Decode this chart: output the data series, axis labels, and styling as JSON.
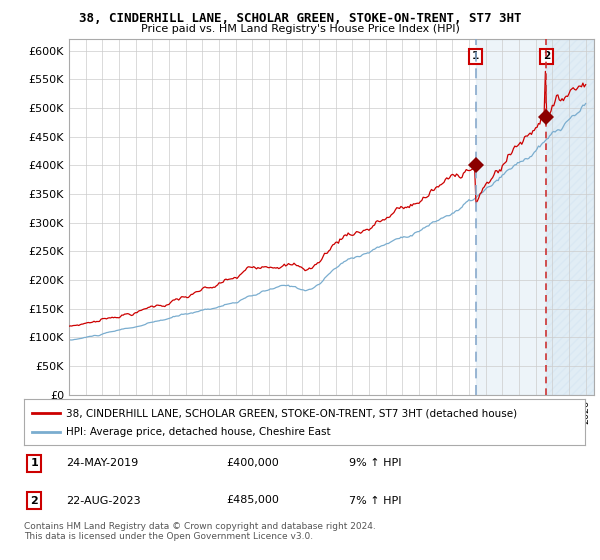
{
  "title1": "38, CINDERHILL LANE, SCHOLAR GREEN, STOKE-ON-TRENT, ST7 3HT",
  "title2": "Price paid vs. HM Land Registry's House Price Index (HPI)",
  "ylim": [
    0,
    620000
  ],
  "yticks": [
    0,
    50000,
    100000,
    150000,
    200000,
    250000,
    300000,
    350000,
    400000,
    450000,
    500000,
    550000,
    600000
  ],
  "ytick_labels": [
    "£0",
    "£50K",
    "£100K",
    "£150K",
    "£200K",
    "£250K",
    "£300K",
    "£350K",
    "£400K",
    "£450K",
    "£500K",
    "£550K",
    "£600K"
  ],
  "xlim_start": 1995.0,
  "xlim_end": 2026.5,
  "line1_color": "#cc0000",
  "line2_color": "#7aadcf",
  "marker_color": "#8b0000",
  "shade_color": "#cce0f0",
  "vline1_color": "#88aacc",
  "vline2_color": "#cc3333",
  "purchase1_x": 2019.39,
  "purchase1_y": 400000,
  "purchase2_x": 2023.64,
  "purchase2_y": 485000,
  "legend1": "38, CINDERHILL LANE, SCHOLAR GREEN, STOKE-ON-TRENT, ST7 3HT (detached house)",
  "legend2": "HPI: Average price, detached house, Cheshire East",
  "ann1_date": "24-MAY-2019",
  "ann1_price": "£400,000",
  "ann1_pct": "9% ↑ HPI",
  "ann2_date": "22-AUG-2023",
  "ann2_price": "£485,000",
  "ann2_pct": "7% ↑ HPI",
  "footer": "Contains HM Land Registry data © Crown copyright and database right 2024.\nThis data is licensed under the Open Government Licence v3.0.",
  "background_color": "#ffffff",
  "grid_color": "#cccccc"
}
